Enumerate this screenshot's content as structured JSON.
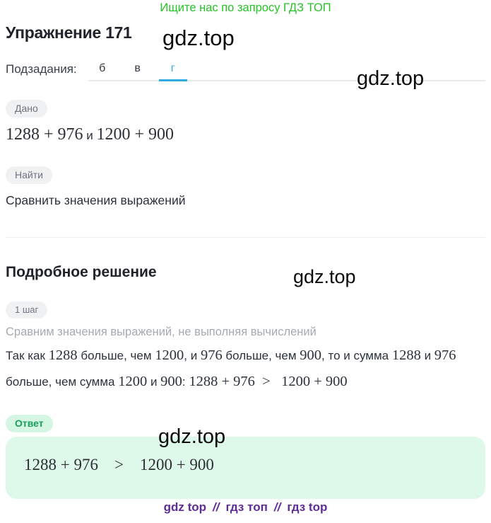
{
  "meta": {
    "watermark": "gdz.top"
  },
  "header": {
    "promo": "Ищите нас по запросу ГДЗ ТОП"
  },
  "exercise": {
    "title": "Упражнение 171",
    "subtasks_label": "Подзадания:",
    "tabs": [
      {
        "label": "б",
        "active": false
      },
      {
        "label": "в",
        "active": false
      },
      {
        "label": "г",
        "active": true
      }
    ]
  },
  "given": {
    "badge": "Дано",
    "expr_left": "1288 + 976",
    "conjunction": " и ",
    "expr_right": "1200 + 900"
  },
  "find": {
    "badge": "Найти",
    "text": "Сравнить значения выражений"
  },
  "solution": {
    "heading": "Подробное решение",
    "step_badge": "1 шаг",
    "step_note": "Сравним значения выражений, не выполняя вычислений",
    "segments": [
      {
        "kind": "text",
        "t": "Так как "
      },
      {
        "kind": "math",
        "t": "1288"
      },
      {
        "kind": "text",
        "t": " больше, чем "
      },
      {
        "kind": "math",
        "t": "1200"
      },
      {
        "kind": "text",
        "t": ", и "
      },
      {
        "kind": "math",
        "t": "976"
      },
      {
        "kind": "text",
        "t": " больше, чем "
      },
      {
        "kind": "math",
        "t": "900"
      },
      {
        "kind": "text",
        "t": ", то и сумма "
      },
      {
        "kind": "math",
        "t": "1288"
      },
      {
        "kind": "text",
        "t": " и "
      },
      {
        "kind": "math",
        "t": "976"
      },
      {
        "kind": "text",
        "t": " больше, чем сумма "
      },
      {
        "kind": "math",
        "t": "1200"
      },
      {
        "kind": "text",
        "t": " и "
      },
      {
        "kind": "math",
        "t": "900"
      },
      {
        "kind": "text",
        "t": ": "
      },
      {
        "kind": "math",
        "t": "1288 + 976 >  1200 + 900"
      }
    ]
  },
  "answer": {
    "badge": "Ответ",
    "formula": "1288 + 976  >  1200 + 900"
  },
  "footer": {
    "links": [
      "gdz top",
      "гдз топ",
      "гдз top"
    ],
    "separator": "//"
  },
  "colors": {
    "promo_green": "#26c326",
    "tab_active_blue": "#2fabe1",
    "badge_gray_bg": "#f0f1f3",
    "badge_gray_text": "#6d7480",
    "answer_badge_bg": "#d5f6e2",
    "answer_badge_text": "#17a05a",
    "answer_box_bg": "#def8e9",
    "footer_purple": "#5e2b97",
    "heading_dark": "#20242a"
  }
}
